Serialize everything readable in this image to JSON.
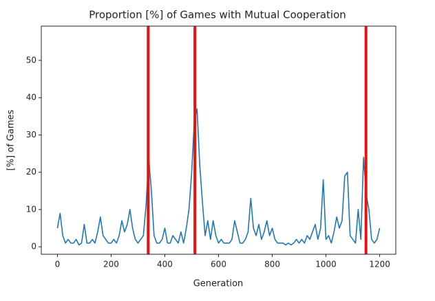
{
  "chart_data": {
    "type": "line",
    "title": "Proportion [%] of Games with Mutual Cooperation",
    "x_label": "Generation",
    "y_label": "[%] of Games",
    "x": [
      0,
      10,
      20,
      30,
      40,
      50,
      60,
      70,
      80,
      90,
      100,
      110,
      120,
      130,
      140,
      150,
      160,
      170,
      180,
      190,
      200,
      210,
      220,
      230,
      240,
      250,
      260,
      270,
      280,
      290,
      300,
      310,
      320,
      330,
      340,
      350,
      360,
      370,
      380,
      390,
      400,
      410,
      420,
      430,
      440,
      450,
      460,
      470,
      480,
      490,
      500,
      510,
      520,
      530,
      540,
      550,
      560,
      570,
      580,
      590,
      600,
      610,
      620,
      630,
      640,
      650,
      660,
      670,
      680,
      690,
      700,
      710,
      720,
      730,
      740,
      750,
      760,
      770,
      780,
      790,
      800,
      810,
      820,
      830,
      840,
      850,
      860,
      870,
      880,
      890,
      900,
      910,
      920,
      930,
      940,
      950,
      960,
      970,
      980,
      990,
      1000,
      1010,
      1020,
      1030,
      1040,
      1050,
      1060,
      1070,
      1080,
      1090,
      1100,
      1110,
      1120,
      1130,
      1140,
      1150,
      1160,
      1170,
      1180,
      1190,
      1200
    ],
    "series": [
      {
        "color": "#1f77b4",
        "values": [
          5,
          9,
          3,
          1,
          2,
          1,
          1,
          2,
          0.5,
          1,
          6,
          1,
          1,
          2,
          1,
          4,
          8,
          3,
          2,
          1,
          1,
          2,
          1,
          3,
          7,
          4,
          6,
          10,
          5,
          2,
          1,
          2,
          3,
          11,
          24,
          15,
          3,
          1,
          1,
          2,
          5,
          1,
          1,
          3,
          2,
          1,
          4,
          1,
          5,
          10,
          20,
          34,
          37,
          22,
          12,
          3,
          7,
          2,
          7,
          3,
          1,
          2,
          1,
          1,
          1,
          2,
          7,
          4,
          1,
          1,
          2,
          4,
          13,
          5,
          3,
          6,
          2,
          4,
          7,
          3,
          5,
          2,
          1,
          1,
          1,
          0.5,
          1,
          0.5,
          1,
          2,
          1,
          2,
          1,
          3,
          2,
          4,
          6,
          2,
          5,
          18,
          2,
          3,
          1,
          4,
          8,
          5,
          7,
          19,
          20,
          3,
          2,
          1,
          10,
          2,
          24,
          14,
          10,
          2,
          1,
          2,
          5
        ]
      }
    ],
    "vlines": [
      338,
      512,
      1149
    ],
    "vline_color": "#e8120c",
    "xlim": [
      -60,
      1260
    ],
    "ylim": [
      -2,
      59.2
    ],
    "xticks": [
      0,
      200,
      400,
      600,
      800,
      1000,
      1200
    ],
    "yticks": [
      0,
      10,
      20,
      30,
      40,
      50
    ]
  }
}
